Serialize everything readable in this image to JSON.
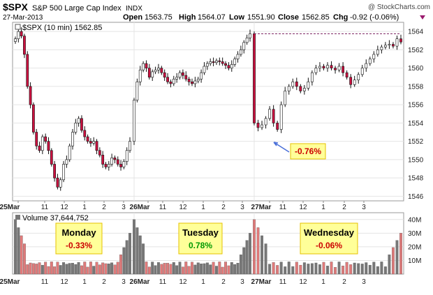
{
  "header": {
    "symbol": "$SPX",
    "name": "S&P 500 Large Cap Index",
    "exchange": "INDX",
    "brand": "@ StockCharts.com",
    "date": "27-Mar-2013",
    "open_label": "Open",
    "open_value": "1563.75",
    "high_label": "High",
    "high_value": "1564.07",
    "low_label": "Low",
    "low_value": "1551.90",
    "close_label": "Close",
    "close_value": "1562.85",
    "chg_label": "Chg",
    "chg_value": "-0.92 (-0.06%)"
  },
  "price_legend": "$SPX (10 min) 1562.85",
  "volume_legend": "Volume 37,644,752",
  "colors": {
    "up": "#ffffff",
    "down": "#cc1140",
    "vol_up": "#777777",
    "vol_down": "#e07a7a",
    "callout_bg": "#ffff99",
    "callout_border": "#e6c200",
    "arrow": "#4a6fd8"
  },
  "chart_data": {
    "type": "candlestick",
    "interval": "10 min",
    "price_axis": {
      "ylim": [
        1545.5,
        1565
      ],
      "ticks": [
        1546,
        1548,
        1550,
        1552,
        1554,
        1556,
        1558,
        1560,
        1562,
        1564
      ],
      "side": "right"
    },
    "x_ticks": [
      "25Mar",
      "11",
      "12",
      "1",
      "2",
      "3",
      "26Mar",
      "11",
      "12",
      "1",
      "2",
      "3",
      "27Mar",
      "11",
      "12",
      "1",
      "2",
      "3"
    ],
    "x_ticks_bold": [
      "25Mar",
      "26Mar",
      "27Mar"
    ],
    "days": [
      {
        "name": "25Mar",
        "bars": 39,
        "path": [
          1563.2,
          1564.0,
          1563.5,
          1561.5,
          1558.0,
          1556.0,
          1553.0,
          1551.5,
          1551.0,
          1552.5,
          1552.0,
          1551.0,
          1549.5,
          1548.0,
          1547.0,
          1547.8,
          1549.5,
          1550.0,
          1551.5,
          1553.0,
          1554.0,
          1554.5,
          1553.2,
          1552.5,
          1552.0,
          1551.8,
          1552.0,
          1551.0,
          1550.5,
          1549.5,
          1549.2,
          1549.5,
          1550.2,
          1550.0,
          1549.5,
          1549.2,
          1549.8,
          1551.0,
          1552.0
        ]
      },
      {
        "name": "26Mar",
        "bars": 39,
        "path": [
          1556.5,
          1558.5,
          1559.8,
          1560.5,
          1560.0,
          1559.0,
          1559.6,
          1559.8,
          1560.0,
          1559.5,
          1559.0,
          1558.5,
          1558.3,
          1558.8,
          1559.0,
          1559.5,
          1559.2,
          1558.8,
          1558.5,
          1558.3,
          1558.6,
          1558.8,
          1559.5,
          1560.2,
          1560.5,
          1560.7,
          1560.6,
          1560.8,
          1560.7,
          1560.5,
          1560.3,
          1560.0,
          1560.4,
          1561.0,
          1561.5,
          1562.0,
          1562.8,
          1563.3,
          1563.75
        ]
      },
      {
        "name": "27Mar",
        "bars": 39,
        "path": [
          1554.0,
          1553.5,
          1553.8,
          1554.5,
          1555.5,
          1554.0,
          1553.3,
          1556.0,
          1557.5,
          1558.0,
          1558.5,
          1558.0,
          1557.5,
          1557.8,
          1558.5,
          1559.5,
          1560.0,
          1560.2,
          1560.0,
          1560.3,
          1560.0,
          1559.8,
          1560.2,
          1559.5,
          1559.0,
          1558.2,
          1558.7,
          1559.3,
          1560.0,
          1560.5,
          1561.0,
          1561.5,
          1562.0,
          1562.3,
          1562.5,
          1562.6,
          1562.4,
          1563.2,
          1562.85
        ]
      }
    ],
    "volume_axis": {
      "ylim": [
        0,
        45
      ],
      "unit": "M",
      "ticks": [
        10,
        20,
        30,
        40
      ],
      "tick_labels": [
        "10M",
        "20M",
        "30M",
        "40M"
      ]
    },
    "day_annotations": [
      {
        "label": "Monday",
        "change": "-0.33%",
        "change_color": "#cc0000"
      },
      {
        "label": "Tuesday",
        "change": "0.78%",
        "change_color": "#009900"
      },
      {
        "label": "Wednesday",
        "change": "-0.06%",
        "change_color": "#cc0000"
      }
    ],
    "gap_annotation": {
      "label": "-0.76%",
      "price": 1551.9,
      "reference_price": 1563.75
    },
    "grid": true
  }
}
